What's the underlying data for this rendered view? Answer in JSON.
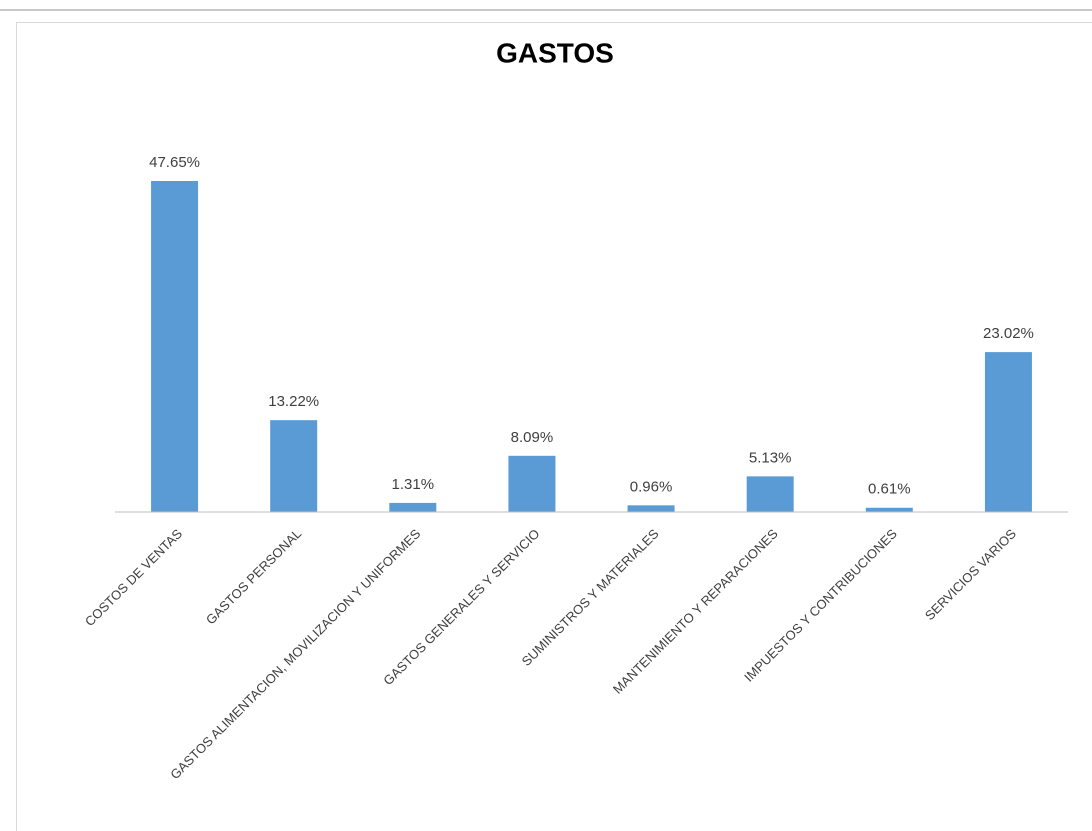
{
  "chart_data": {
    "type": "bar",
    "title": "GASTOS",
    "categories": [
      "COSTOS DE VENTAS",
      "GASTOS PERSONAL",
      "GASTOS ALIMENTACION, MOVILIZACION Y UNIFORMES",
      "GASTOS GENERALES Y SERVICIO",
      "SUMINISTROS Y MATERIALES",
      "MANTENIMIENTO Y REPARACIONES",
      "IMPUESTOS Y CONTRIBUCIONES",
      "SERVICIOS VARIOS"
    ],
    "values": [
      47.65,
      13.22,
      1.31,
      8.09,
      0.96,
      5.13,
      0.61,
      23.02
    ],
    "value_labels": [
      "47.65%",
      "13.22%",
      "1.31%",
      "8.09%",
      "0.96%",
      "5.13%",
      "0.61%",
      "23.02%"
    ],
    "color": "#5b9bd5"
  }
}
